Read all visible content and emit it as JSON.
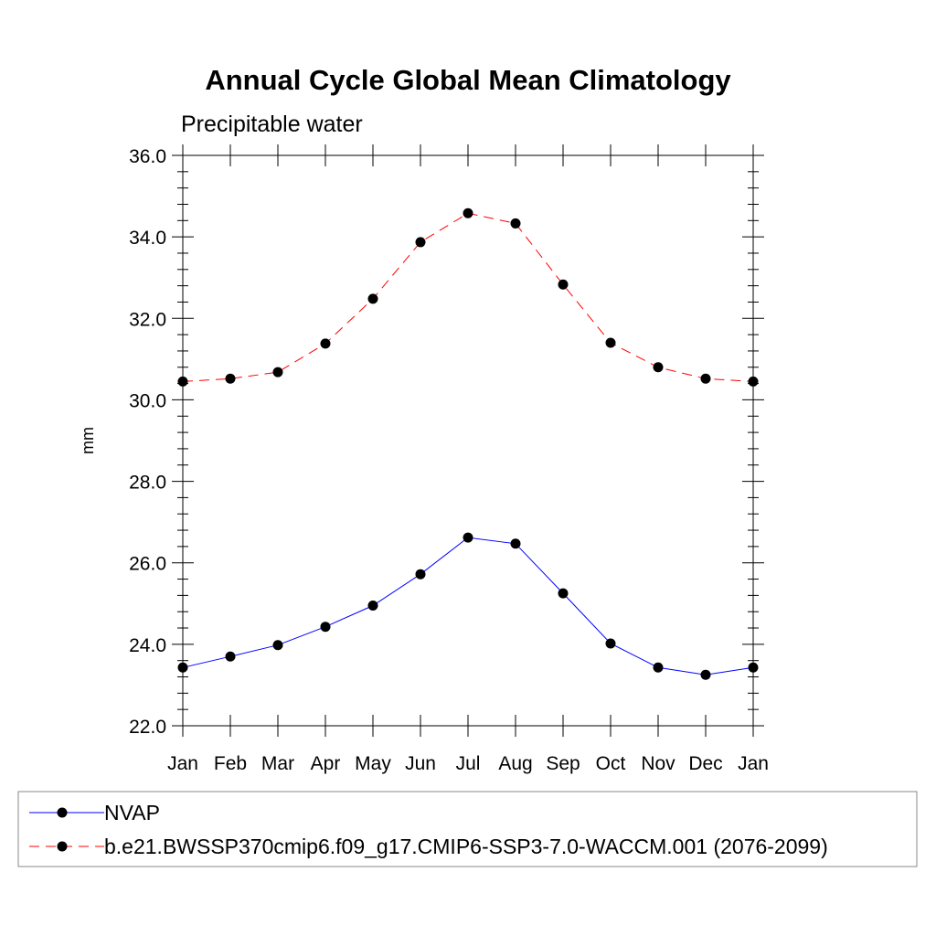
{
  "chart_data": {
    "type": "line",
    "title": "Annual Cycle Global Mean Climatology",
    "subtitle": "Precipitable water",
    "xlabel": "",
    "ylabel": "mm",
    "categories": [
      "Jan",
      "Feb",
      "Mar",
      "Apr",
      "May",
      "Jun",
      "Jul",
      "Aug",
      "Sep",
      "Oct",
      "Nov",
      "Dec",
      "Jan"
    ],
    "ylim": [
      22.0,
      36.0
    ],
    "yticks": [
      22.0,
      24.0,
      26.0,
      28.0,
      30.0,
      32.0,
      34.0,
      36.0
    ],
    "ytick_labels": [
      "22.0",
      "24.0",
      "26.0",
      "28.0",
      "30.0",
      "32.0",
      "34.0",
      "36.0"
    ],
    "grid": false,
    "legend_position": "bottom",
    "series": [
      {
        "name": "NVAP",
        "color": "#0000ff",
        "line_style": "solid",
        "values": [
          23.43,
          23.7,
          23.98,
          24.43,
          24.95,
          25.72,
          26.62,
          26.47,
          25.25,
          24.02,
          23.43,
          23.25,
          23.43
        ]
      },
      {
        "name": "b.e21.BWSSP370cmip6.f09_g17.CMIP6-SSP3-7.0-WACCM.001 (2076-2099)",
        "color": "#ff0000",
        "line_style": "dashed",
        "values": [
          30.45,
          30.52,
          30.68,
          31.38,
          32.48,
          33.87,
          34.58,
          34.33,
          32.83,
          31.4,
          30.8,
          30.52,
          30.45
        ]
      }
    ]
  }
}
